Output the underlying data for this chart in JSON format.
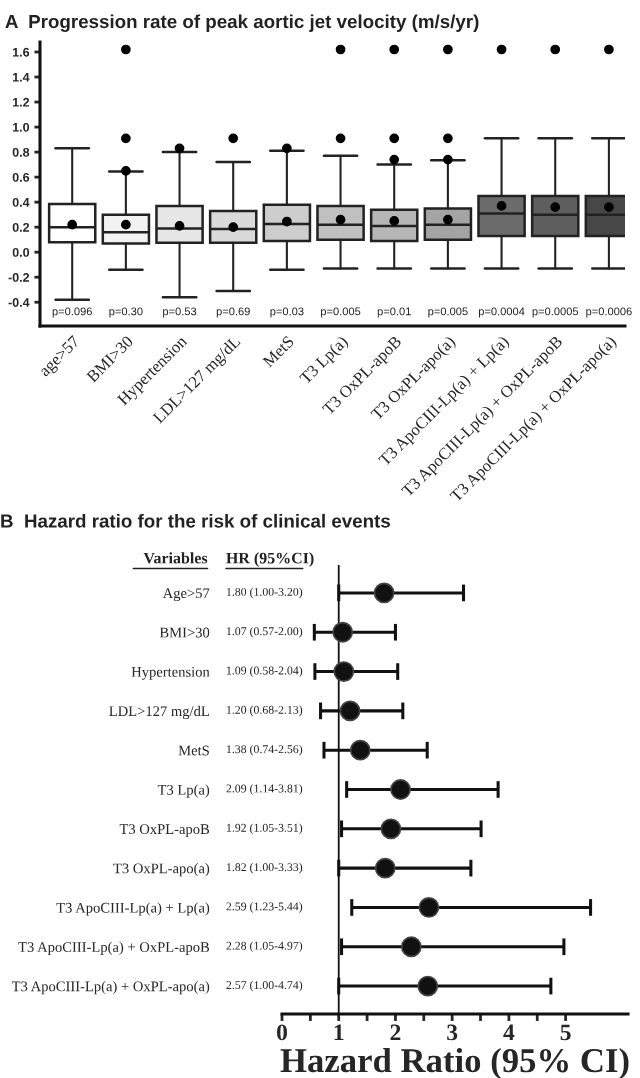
{
  "chart_data": [
    {
      "type": "box",
      "title": "A  Progression rate of peak aortic jet velocity (m/s/yr)",
      "categories": [
        "age>57",
        "BMI>30",
        "Hypertension",
        "LDL>127 mg/dL",
        "MetS",
        "T3 Lp(a)",
        "T3 OxPL-apoB",
        "T3 OxPL-apo(a)",
        "T3 ApoCIII-Lp(a) + Lp(a)",
        "T3 ApoCIII-Lp(a) + OxPL-apoB",
        "T3 ApoCIII-Lp(a) + OxPL-apo(a)"
      ],
      "colors": [
        "#ffffff",
        "#f2f2f2",
        "#e6e6e6",
        "#dadada",
        "#cdcdcd",
        "#c0c0c0",
        "#b6b6b6",
        "#a4a4a4",
        "#6c6c6c",
        "#5e5e5e",
        "#474747"
      ],
      "boxes": [
        {
          "low": -0.38,
          "q1": 0.08,
          "median": 0.2,
          "q3": 0.385,
          "high": 0.83,
          "mean": 0.22
        },
        {
          "low": -0.14,
          "q1": 0.07,
          "median": 0.16,
          "q3": 0.3,
          "high": 0.645,
          "mean": 0.22,
          "outliers": [
            1.62,
            0.91,
            0.65
          ]
        },
        {
          "low": -0.36,
          "q1": 0.075,
          "median": 0.19,
          "q3": 0.37,
          "high": 0.8,
          "mean": 0.21,
          "outliers": [
            0.83
          ]
        },
        {
          "low": -0.31,
          "q1": 0.075,
          "median": 0.185,
          "q3": 0.33,
          "high": 0.72,
          "mean": 0.2,
          "outliers": [
            0.91
          ]
        },
        {
          "low": -0.14,
          "q1": 0.09,
          "median": 0.225,
          "q3": 0.38,
          "high": 0.81,
          "mean": 0.245,
          "outliers": [
            0.83
          ]
        },
        {
          "low": -0.13,
          "q1": 0.1,
          "median": 0.22,
          "q3": 0.37,
          "high": 0.77,
          "mean": 0.26,
          "outliers": [
            1.62,
            0.91
          ]
        },
        {
          "low": -0.13,
          "q1": 0.09,
          "median": 0.21,
          "q3": 0.34,
          "high": 0.7,
          "mean": 0.25,
          "outliers": [
            1.62,
            0.91,
            0.74
          ]
        },
        {
          "low": -0.13,
          "q1": 0.1,
          "median": 0.22,
          "q3": 0.35,
          "high": 0.735,
          "mean": 0.26,
          "outliers": [
            1.62,
            0.91,
            0.74
          ]
        },
        {
          "low": -0.13,
          "q1": 0.13,
          "median": 0.31,
          "q3": 0.45,
          "high": 0.91,
          "mean": 0.37,
          "outliers": [
            1.62
          ]
        },
        {
          "low": -0.13,
          "q1": 0.13,
          "median": 0.3,
          "q3": 0.45,
          "high": 0.91,
          "mean": 0.36,
          "outliers": [
            1.62
          ]
        },
        {
          "low": -0.13,
          "q1": 0.13,
          "median": 0.3,
          "q3": 0.45,
          "high": 0.91,
          "mean": 0.36,
          "outliers": [
            1.62
          ]
        }
      ],
      "ylim": [
        -0.59,
        1.68
      ],
      "yticks": [
        -0.4,
        -0.2,
        {
          "value": 0,
          "label": "0.0"
        },
        0.2,
        0.4,
        0.6,
        0.8,
        {
          "value": 1,
          "label": "1.0"
        },
        1.2,
        1.4,
        1.6
      ],
      "annotations": [
        "p=0.096",
        "p=0.30",
        "p=0.53",
        "p=0.69",
        "p=0.03",
        "p=0.005",
        "p=0.01",
        "p=0.005",
        "p=0.0004",
        "p=0.0005",
        "p=0.0006"
      ],
      "grid": false
    },
    {
      "type": "scatter",
      "orientation": "horizontal",
      "title": "B  Hazard ratio for the risk of clinical events",
      "categories": [
        "Age>57",
        "BMI>30",
        "Hypertension",
        "LDL>127 mg/dL",
        "MetS",
        "T3 Lp(a)",
        "T3 OxPL-apoB",
        "T3 OxPL-apo(a)",
        "T3 ApoCIII-Lp(a) + Lp(a)",
        "T3 ApoCIII-Lp(a) + OxPL-apoB",
        "T3 ApoCIII-Lp(a) + OxPL-apo(a)"
      ],
      "values": [
        1.8,
        1.07,
        1.09,
        1.2,
        1.38,
        2.09,
        1.92,
        1.82,
        2.59,
        2.28,
        2.57
      ],
      "errors": [
        [
          1.0,
          3.2
        ],
        [
          0.57,
          2.0
        ],
        [
          0.58,
          2.04
        ],
        [
          0.68,
          2.13
        ],
        [
          0.74,
          2.56
        ],
        [
          1.14,
          3.81
        ],
        [
          1.05,
          3.51
        ],
        [
          1.0,
          3.33
        ],
        [
          1.23,
          5.44
        ],
        [
          1.05,
          4.97
        ],
        [
          1.0,
          4.74
        ]
      ],
      "color": "#111111",
      "marker": "circle",
      "ylabel": "Variables",
      "annotations": [
        "HR (95%CI)",
        "1.80 (1.00-3.20)",
        "1.07 (0.57-2.00)",
        "1.09 (0.58-2.04)",
        "1.20 (0.68-2.13)",
        "1.38 (0.74-2.56)",
        "2.09 (1.14-3.81)",
        "1.92 (1.05-3.51)",
        "1.82 (1.00-3.33)",
        "2.59 (1.23-5.44)",
        "2.28 (1.05-4.97)",
        "2.57 (1.00-4.74)"
      ],
      "xlabel": "Hazard Ratio (95% CI)",
      "xlim": [
        0,
        6.1
      ],
      "xticks": [
        0,
        {
          "value": 0.5,
          "label": null
        },
        1,
        {
          "value": 1.5,
          "label": null
        },
        2,
        {
          "value": 2.5,
          "label": null
        },
        3,
        {
          "value": 3.5,
          "label": null
        },
        4,
        {
          "value": 4.5,
          "label": null
        },
        5
      ],
      "ref_lines": [
        {
          "axis": "x",
          "value": 1,
          "color": "#111111"
        }
      ],
      "grid": false
    }
  ]
}
